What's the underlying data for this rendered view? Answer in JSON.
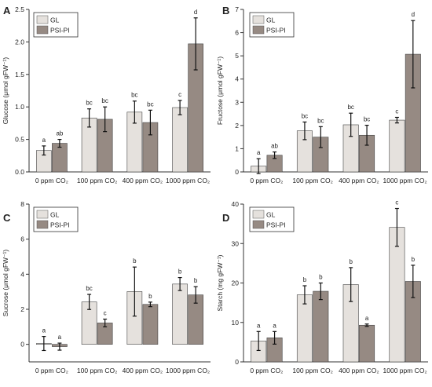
{
  "figure": {
    "colors": {
      "GL": "#e5e1dd",
      "PSI-PI": "#968a83"
    }
  },
  "chart_data": [
    {
      "type": "bar",
      "panel": "A",
      "ylabel": "Glucose (μmol gFW⁻¹)",
      "categories": [
        "0 ppm CO₂",
        "100 ppm CO₂",
        "400 ppm CO₂",
        "1000 ppm CO₂"
      ],
      "ylim": [
        0,
        2.5
      ],
      "yticks": [
        0.0,
        0.5,
        1.0,
        1.5,
        2.0,
        2.5
      ],
      "ytick_labels": [
        "0.0",
        "0.5",
        "1.0",
        "1.5",
        "2.0",
        "2.5"
      ],
      "legend": [
        "GL",
        "PSI-PI"
      ],
      "legend_position": "top-left",
      "series": [
        {
          "name": "GL",
          "values": [
            0.33,
            0.83,
            0.92,
            0.99
          ],
          "errors": [
            0.07,
            0.14,
            0.17,
            0.11
          ],
          "labels": [
            "a",
            "bc",
            "bc",
            "c"
          ]
        },
        {
          "name": "PSI-PI",
          "values": [
            0.44,
            0.81,
            0.76,
            1.97
          ],
          "errors": [
            0.06,
            0.19,
            0.19,
            0.4
          ],
          "labels": [
            "ab",
            "bc",
            "bc",
            "d"
          ]
        }
      ]
    },
    {
      "type": "bar",
      "panel": "B",
      "ylabel": "Fructose (μmol gFW⁻¹)",
      "categories": [
        "0 ppm CO₂",
        "100 ppm CO₂",
        "400 ppm CO₂",
        "1000 ppm CO₂"
      ],
      "ylim": [
        0,
        7
      ],
      "yticks": [
        0,
        1,
        2,
        3,
        4,
        5,
        6,
        7
      ],
      "ytick_labels": [
        "0",
        "1",
        "2",
        "3",
        "4",
        "5",
        "6",
        "7"
      ],
      "legend": [
        "GL",
        "PSI-PI"
      ],
      "legend_position": "top-left",
      "series": [
        {
          "name": "GL",
          "values": [
            0.25,
            1.77,
            2.03,
            2.23
          ],
          "errors": [
            0.32,
            0.38,
            0.5,
            0.12
          ],
          "labels": [
            "a",
            "bc",
            "bc",
            "c"
          ]
        },
        {
          "name": "PSI-PI",
          "values": [
            0.72,
            1.5,
            1.58,
            5.07
          ],
          "errors": [
            0.14,
            0.45,
            0.43,
            1.45
          ],
          "labels": [
            "ab",
            "bc",
            "bc",
            "d"
          ]
        }
      ]
    },
    {
      "type": "bar",
      "panel": "C",
      "ylabel": "Sucrose (μmol gFW⁻¹)",
      "categories": [
        "0 ppm CO₂",
        "100 ppm CO₂",
        "400 ppm CO₂",
        "1000 ppm CO₂"
      ],
      "ylim": [
        -1,
        8
      ],
      "yticks": [
        0,
        2,
        4,
        6,
        8
      ],
      "ytick_labels": [
        "0",
        "2",
        "4",
        "6",
        "8"
      ],
      "legend": [
        "GL",
        "PSI-PI"
      ],
      "legend_position": "top-left",
      "series": [
        {
          "name": "GL",
          "values": [
            0.05,
            2.42,
            3.01,
            3.44
          ],
          "errors": [
            0.4,
            0.43,
            1.4,
            0.37
          ],
          "labels": [
            "a",
            "bc",
            "b",
            "b"
          ]
        },
        {
          "name": "PSI-PI",
          "values": [
            -0.13,
            1.22,
            2.28,
            2.82
          ],
          "errors": [
            0.2,
            0.22,
            0.13,
            0.47
          ],
          "labels": [
            "a",
            "c",
            "b",
            "b"
          ]
        }
      ]
    },
    {
      "type": "bar",
      "panel": "D",
      "ylabel": "Starch (mg gFW⁻¹)",
      "categories": [
        "0 ppm CO₂",
        "100 ppm CO₂",
        "400 ppm CO₂",
        "1000 ppm CO₂"
      ],
      "ylim": [
        0,
        40
      ],
      "yticks": [
        0,
        10,
        20,
        30,
        40
      ],
      "ytick_labels": [
        "0",
        "10",
        "20",
        "30",
        "40"
      ],
      "legend": [
        "GL",
        "PSI-PI"
      ],
      "legend_position": "top-left",
      "series": [
        {
          "name": "GL",
          "values": [
            5.3,
            17.0,
            19.6,
            34.1
          ],
          "errors": [
            2.4,
            2.3,
            4.3,
            4.8
          ],
          "labels": [
            "a",
            "b",
            "b",
            "c"
          ]
        },
        {
          "name": "PSI-PI",
          "values": [
            6.1,
            17.9,
            9.3,
            20.4
          ],
          "errors": [
            1.6,
            2.1,
            0.3,
            4.1
          ],
          "labels": [
            "a",
            "b",
            "a",
            "b"
          ]
        }
      ]
    }
  ]
}
